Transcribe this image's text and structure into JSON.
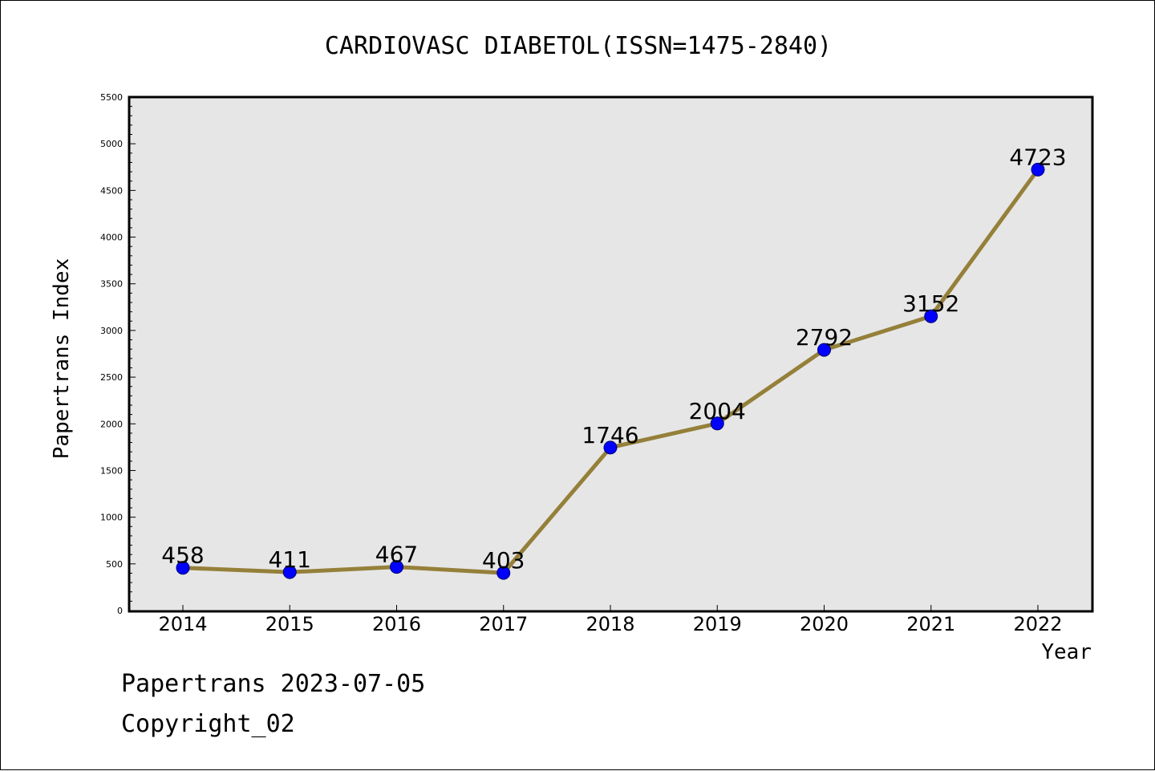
{
  "chart_data": {
    "type": "line",
    "title": "CARDIOVASC DIABETOL(ISSN=1475-2840)",
    "xlabel": "Year",
    "ylabel": "Papertrans Index",
    "categories": [
      "2014",
      "2015",
      "2016",
      "2017",
      "2018",
      "2019",
      "2020",
      "2021",
      "2022"
    ],
    "series": [
      {
        "values": [
          458,
          411,
          467,
          403,
          1746,
          2004,
          2792,
          3152,
          4723
        ],
        "data_labels": [
          "458",
          "411",
          "467",
          "403",
          "1746",
          "2004",
          "2792",
          "3152",
          "4723"
        ],
        "line_color": "#95803a",
        "marker_color": "#0000ff"
      }
    ],
    "ylim": [
      0,
      5500
    ],
    "yticks": [
      "0",
      "500",
      "1000",
      "1500",
      "2000",
      "2500",
      "3000",
      "3500",
      "4000",
      "4500",
      "5000",
      "5500"
    ],
    "plot_background": "#e6e6e6",
    "grid": false
  },
  "footer": {
    "line1": "Papertrans 2023-07-05",
    "line2": "Copyright_02"
  }
}
